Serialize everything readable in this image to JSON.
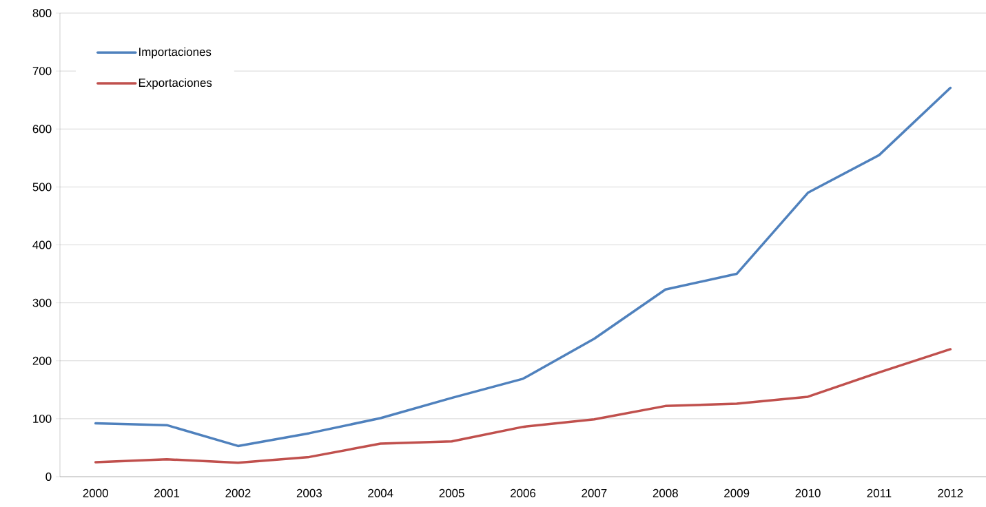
{
  "chart_data": {
    "type": "line",
    "categories": [
      "2000",
      "2001",
      "2002",
      "2003",
      "2004",
      "2005",
      "2006",
      "2007",
      "2008",
      "2009",
      "2010",
      "2011",
      "2012"
    ],
    "series": [
      {
        "name": "Importaciones",
        "color": "#4f81bd",
        "values": [
          92,
          89,
          53,
          75,
          101,
          136,
          169,
          238,
          323,
          350,
          490,
          555,
          671
        ]
      },
      {
        "name": "Exportaciones",
        "color": "#c0504d",
        "values": [
          25,
          30,
          24,
          34,
          57,
          61,
          86,
          99,
          122,
          126,
          138,
          180,
          220
        ]
      }
    ],
    "ylim": [
      0,
      800
    ],
    "yticks": [
      0,
      100,
      200,
      300,
      400,
      500,
      600,
      700,
      800
    ],
    "grid": "y",
    "legend": "top left",
    "line_style": "solid"
  }
}
